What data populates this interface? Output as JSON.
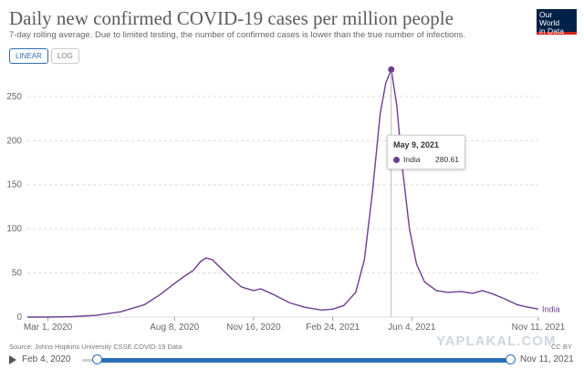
{
  "header": {
    "title": "Daily new confirmed COVID-19 cases per million people",
    "subtitle": "7-day rolling average. Due to limited testing, the number of confirmed cases is lower than the true number of infections.",
    "logo_line1": "Our World",
    "logo_line2": "in Data"
  },
  "toggles": {
    "linear": "LINEAR",
    "log": "LOG",
    "active": "linear"
  },
  "chart_data": {
    "type": "line",
    "xlabel": "",
    "ylabel": "",
    "x_tick_labels": [
      "Mar 1, 2020",
      "Aug 8, 2020",
      "Nov 16, 2020",
      "Feb 24, 2021",
      "Jun 4, 2021",
      "Nov 11, 2021"
    ],
    "y_ticks": [
      0,
      50,
      100,
      150,
      200,
      250
    ],
    "ylim": [
      0,
      285
    ],
    "xlim": [
      "2020-02-04",
      "2021-11-11"
    ],
    "grid": true,
    "series": [
      {
        "name": "India",
        "color": "#6d3e91",
        "points": [
          [
            "2020-02-04",
            0
          ],
          [
            "2020-03-01",
            0
          ],
          [
            "2020-04-01",
            0.5
          ],
          [
            "2020-05-01",
            2
          ],
          [
            "2020-06-01",
            6
          ],
          [
            "2020-07-01",
            14
          ],
          [
            "2020-07-20",
            25
          ],
          [
            "2020-08-08",
            38
          ],
          [
            "2020-08-20",
            46
          ],
          [
            "2020-09-01",
            53
          ],
          [
            "2020-09-10",
            63
          ],
          [
            "2020-09-17",
            67
          ],
          [
            "2020-09-25",
            65
          ],
          [
            "2020-10-05",
            56
          ],
          [
            "2020-10-20",
            43
          ],
          [
            "2020-11-01",
            34
          ],
          [
            "2020-11-16",
            30
          ],
          [
            "2020-11-25",
            32
          ],
          [
            "2020-12-10",
            26
          ],
          [
            "2021-01-01",
            16
          ],
          [
            "2021-01-20",
            11
          ],
          [
            "2021-02-10",
            8
          ],
          [
            "2021-02-24",
            9
          ],
          [
            "2021-03-10",
            13
          ],
          [
            "2021-03-25",
            28
          ],
          [
            "2021-04-05",
            65
          ],
          [
            "2021-04-15",
            140
          ],
          [
            "2021-04-25",
            230
          ],
          [
            "2021-05-02",
            265
          ],
          [
            "2021-05-09",
            280.61
          ],
          [
            "2021-05-16",
            240
          ],
          [
            "2021-05-23",
            170
          ],
          [
            "2021-06-01",
            100
          ],
          [
            "2021-06-10",
            60
          ],
          [
            "2021-06-20",
            40
          ],
          [
            "2021-07-05",
            30
          ],
          [
            "2021-07-20",
            28
          ],
          [
            "2021-08-05",
            29
          ],
          [
            "2021-08-20",
            27
          ],
          [
            "2021-09-01",
            30
          ],
          [
            "2021-09-15",
            26
          ],
          [
            "2021-10-01",
            20
          ],
          [
            "2021-10-15",
            14
          ],
          [
            "2021-10-25",
            12
          ],
          [
            "2021-11-11",
            9
          ]
        ]
      }
    ],
    "tooltip": {
      "date": "May 9, 2021",
      "series": "India",
      "value": "280.61"
    },
    "end_label": "India"
  },
  "footer": {
    "source": "Source: Johns Hopkins University CSSE COVID-19 Data",
    "license": "CC BY",
    "watermark": "YAPLAKAL.COM"
  },
  "timeline": {
    "start_label": "Feb 4, 2020",
    "end_label": "Nov 11, 2021"
  }
}
